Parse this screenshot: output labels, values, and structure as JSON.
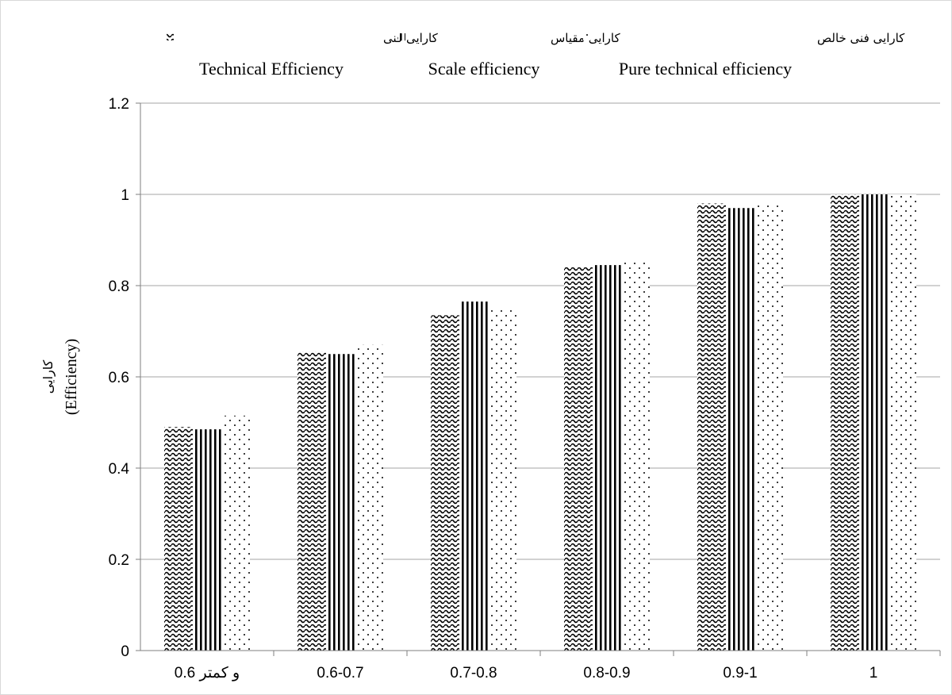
{
  "chart_data": {
    "type": "bar",
    "categories": [
      "0.6 و کمتر",
      "0.6-0.7",
      "0.7-0.8",
      "0.8-0.9",
      "0.9-1",
      "1"
    ],
    "series": [
      {
        "name": "Technical Efficiency",
        "name_fa": "کارایی فنی",
        "pattern": "wave",
        "values": [
          0.49,
          0.655,
          0.735,
          0.84,
          0.98,
          1.0
        ]
      },
      {
        "name": "Scale efficiency",
        "name_fa": "کارایی مقیاس",
        "pattern": "vertical-lines",
        "values": [
          0.485,
          0.65,
          0.765,
          0.845,
          0.97,
          1.0
        ]
      },
      {
        "name": "Pure technical efficiency",
        "name_fa": "کارایی فنی خالص",
        "pattern": "dots",
        "values": [
          0.515,
          0.67,
          0.75,
          0.855,
          0.98,
          1.0
        ]
      }
    ],
    "ylabel_fa": "کارایی",
    "ylabel": "(Efficiency)",
    "ylim": [
      0,
      1.2
    ],
    "yticks": [
      0,
      0.2,
      0.4,
      0.6,
      0.8,
      1,
      1.2
    ],
    "ytick_labels": [
      "0",
      "0.2",
      "0.4",
      "0.6",
      "0.8",
      "1",
      "1.2"
    ],
    "grid": true,
    "legend_position": "top",
    "colors": {
      "bar": "#000000",
      "grid": "#a6a6a6",
      "axis": "#7f7f7f",
      "background": "#ffffff"
    }
  }
}
